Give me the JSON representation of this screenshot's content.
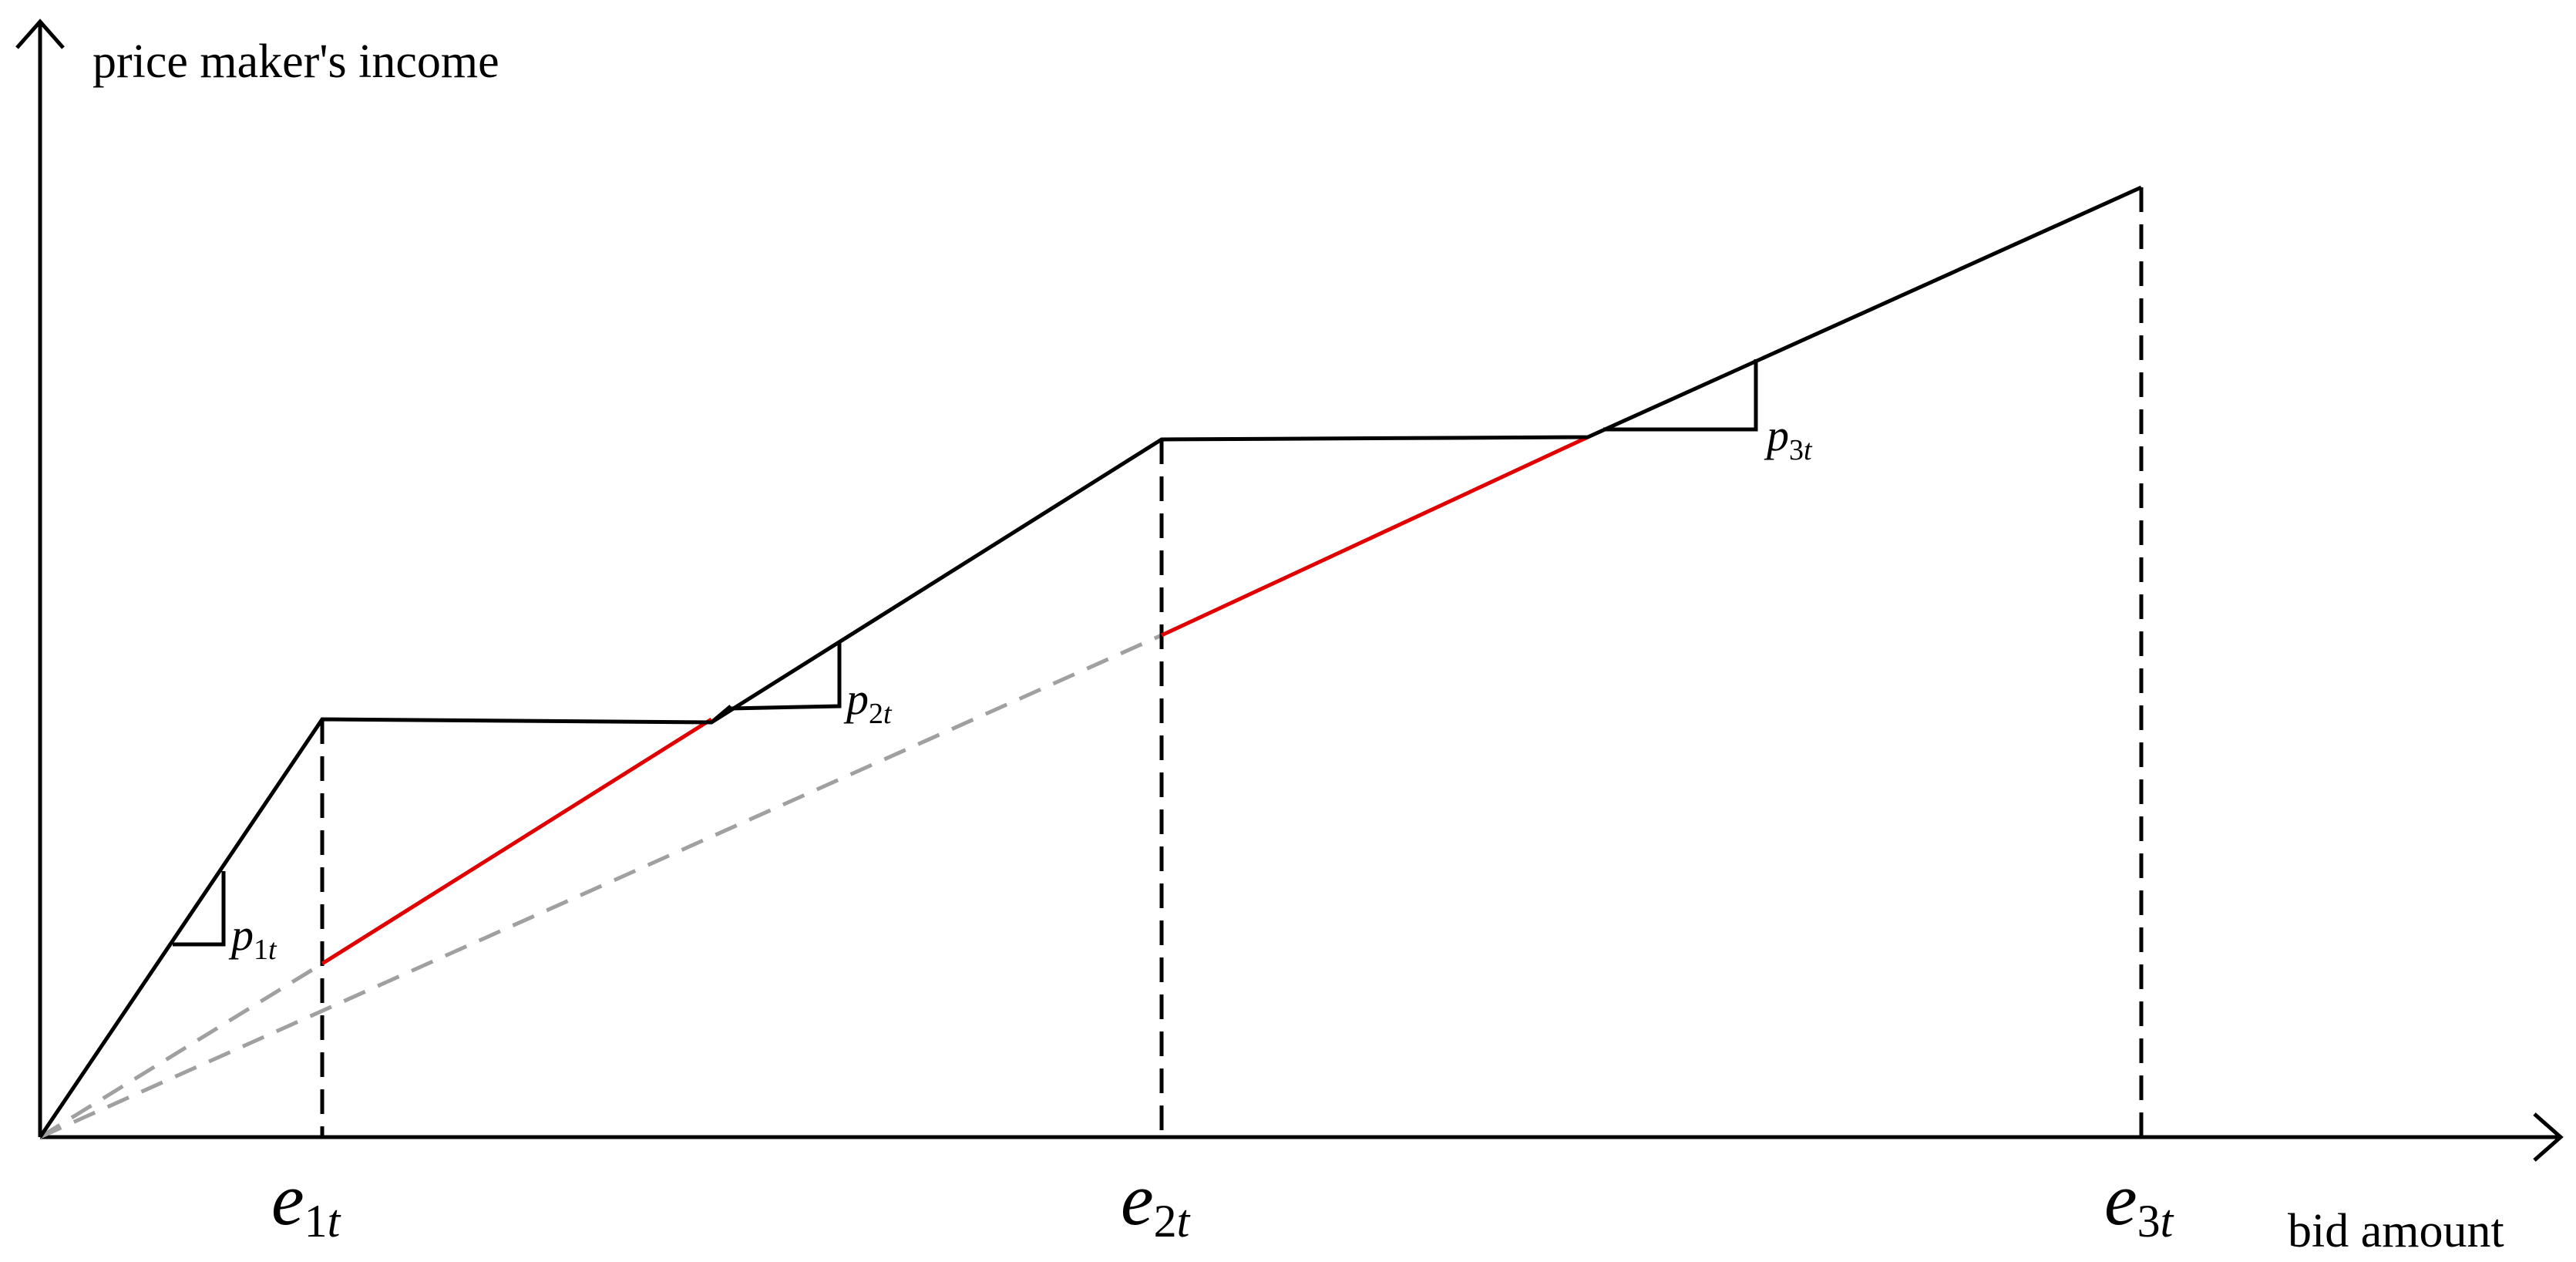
{
  "diagram": {
    "y_axis_label": "price maker's income",
    "x_axis_label": "bid amount",
    "ticks": [
      {
        "base": "e",
        "sub": "1",
        "sub_italic": "t"
      },
      {
        "base": "e",
        "sub": "2",
        "sub_italic": "t"
      },
      {
        "base": "e",
        "sub": "3",
        "sub_italic": "t"
      }
    ],
    "slopes": [
      {
        "base": "p",
        "sub": "1",
        "sub_italic": "t"
      },
      {
        "base": "p",
        "sub": "2",
        "sub_italic": "t"
      },
      {
        "base": "p",
        "sub": "3",
        "sub_italic": "t"
      }
    ],
    "colors": {
      "main_line": "#000000",
      "highlight_line": "#e00000",
      "reference_dashed": "#a0a0a0",
      "drop_lines": "#000000"
    }
  }
}
